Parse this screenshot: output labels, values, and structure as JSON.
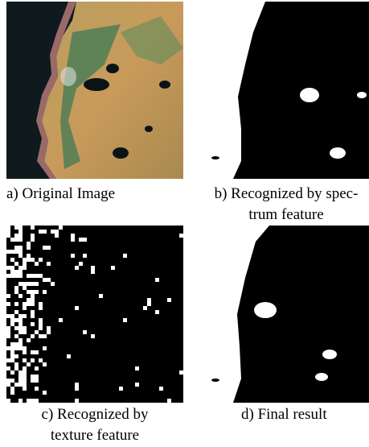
{
  "figure": {
    "panels": [
      {
        "caption": [
          "a) Original Image"
        ]
      },
      {
        "caption": [
          "b) Recognized by spec-",
          "trum feature"
        ]
      },
      {
        "caption": [
          "c)  Recognized by",
          "texture feature"
        ]
      },
      {
        "caption": [
          "d) Final result"
        ]
      }
    ]
  }
}
